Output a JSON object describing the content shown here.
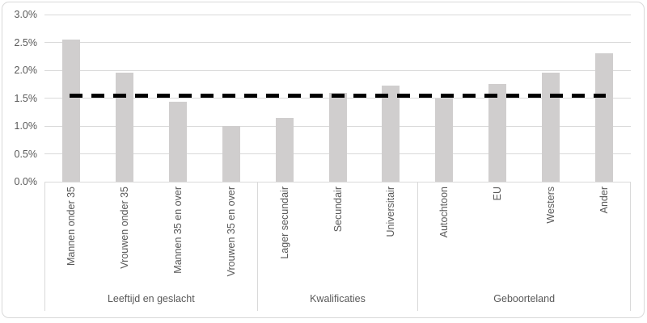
{
  "chart_data": {
    "type": "bar",
    "title": "",
    "categories": [
      "Mannen onder 35",
      "Vrouwen onder 35",
      "Mannen 35 en over",
      "Vrouwen 35 en over",
      "Lager secundair",
      "Secundair",
      "Universitair",
      "Autochtoon",
      "EU",
      "Westers",
      "Ander"
    ],
    "values": [
      2.55,
      1.95,
      1.43,
      1.0,
      1.15,
      1.6,
      1.72,
      1.5,
      1.75,
      1.96,
      2.3
    ],
    "value_unit": "%",
    "groups": [
      {
        "label": "Leeftijd en geslacht",
        "span": 4
      },
      {
        "label": "Kwalificaties",
        "span": 3
      },
      {
        "label": "Geboorteland",
        "span": 4
      }
    ],
    "reference_line": {
      "value": 1.55,
      "style": "dashed",
      "color": "#000000"
    },
    "y_axis": {
      "min": 0,
      "max": 3.0,
      "step": 0.5,
      "ticks": [
        "0.0%",
        "0.5%",
        "1.0%",
        "1.5%",
        "2.0%",
        "2.5%",
        "3.0%"
      ]
    },
    "legend": "none",
    "grid": true,
    "colors": {
      "bar": "#d0cece",
      "gridline": "#d9d9d9",
      "text": "#595959",
      "frame": "#d9d9d9"
    }
  }
}
